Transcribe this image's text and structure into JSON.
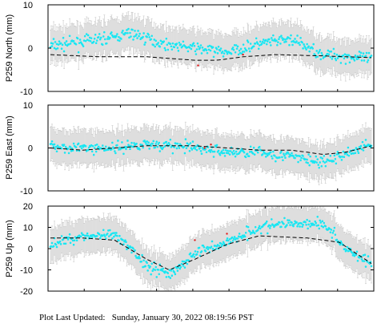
{
  "footer": {
    "label": "Plot Last Updated:",
    "timestamp": "Sunday, January 30, 2022 08:19:56 PST"
  },
  "colors": {
    "points": "#19e6f2",
    "error_bars": "#c8c8c8",
    "model_line": "#000000",
    "outliers": "#e01b1b",
    "frame": "#000000"
  },
  "chart_data": [
    {
      "type": "scatter",
      "title": "",
      "xlabel": "",
      "ylabel": "P259 North (mm)",
      "ylim": [
        -10,
        10
      ],
      "yticks": [
        10,
        0,
        -10
      ],
      "grid": false,
      "legend": "none",
      "n_points": 400,
      "error_bar": 4,
      "series": [
        {
          "style": "points-with-error-bars",
          "x": [
            0,
            0.1,
            0.2,
            0.25,
            0.35,
            0.45,
            0.55,
            0.65,
            0.75,
            0.85,
            1.0
          ],
          "y": [
            0.5,
            1.5,
            2.5,
            3.5,
            1.0,
            0.0,
            -1.0,
            1.0,
            2.0,
            -1.5,
            -2.5
          ]
        },
        {
          "style": "dashed-model",
          "x": [
            0,
            0.15,
            0.3,
            0.45,
            0.52,
            0.6,
            0.7,
            0.85,
            1.0
          ],
          "y": [
            -1.5,
            -2.0,
            -2.0,
            -2.8,
            -2.8,
            -2.0,
            -1.5,
            -1.8,
            -2.2
          ]
        },
        {
          "style": "outliers",
          "x": [
            0.46,
            0.6
          ],
          "y": [
            -4.0,
            -1.5
          ]
        }
      ]
    },
    {
      "type": "scatter",
      "title": "",
      "xlabel": "",
      "ylabel": "P259 East (mm)",
      "ylim": [
        -10,
        10
      ],
      "yticks": [
        10,
        0,
        -10
      ],
      "grid": false,
      "legend": "none",
      "n_points": 400,
      "error_bar": 4,
      "series": [
        {
          "style": "points-with-error-bars",
          "x": [
            0,
            0.1,
            0.2,
            0.3,
            0.45,
            0.55,
            0.65,
            0.75,
            0.85,
            1.0
          ],
          "y": [
            0.5,
            0.0,
            0.0,
            1.0,
            0.0,
            -1.0,
            -1.0,
            -2.0,
            -3.5,
            1.0
          ]
        },
        {
          "style": "dashed-model",
          "x": [
            0,
            0.1,
            0.3,
            0.45,
            0.55,
            0.65,
            0.75,
            0.85,
            0.92,
            1.0
          ],
          "y": [
            0.0,
            -0.5,
            0.5,
            0.5,
            0.0,
            -0.5,
            -0.5,
            -1.5,
            -1.0,
            0.5
          ]
        },
        {
          "style": "outliers",
          "x": [
            0.48,
            0.5
          ],
          "y": [
            0.0,
            0.8
          ]
        }
      ]
    },
    {
      "type": "scatter",
      "title": "",
      "xlabel": "",
      "ylabel": "P259 Up (mm)",
      "ylim": [
        -20,
        20
      ],
      "yticks": [
        20,
        10,
        0,
        -10,
        -20
      ],
      "grid": false,
      "legend": "none",
      "n_points": 400,
      "error_bar": 8,
      "series": [
        {
          "style": "points-with-error-bars",
          "x": [
            0,
            0.1,
            0.2,
            0.25,
            0.3,
            0.38,
            0.45,
            0.55,
            0.65,
            0.75,
            0.85,
            0.92,
            1.0
          ],
          "y": [
            2.0,
            6.0,
            6.0,
            0.0,
            -8.0,
            -12.0,
            -2.0,
            3.0,
            10.0,
            12.0,
            12.0,
            0.0,
            -7.0
          ]
        },
        {
          "style": "dashed-model",
          "x": [
            0,
            0.1,
            0.2,
            0.3,
            0.37,
            0.45,
            0.55,
            0.65,
            0.8,
            0.9,
            1.0
          ],
          "y": [
            5.0,
            5.0,
            4.0,
            -5.0,
            -10.0,
            -5.0,
            2.0,
            6.0,
            5.0,
            3.0,
            -7.0
          ]
        },
        {
          "style": "outliers",
          "x": [
            0.45,
            0.55
          ],
          "y": [
            4.0,
            7.0
          ]
        }
      ]
    }
  ]
}
